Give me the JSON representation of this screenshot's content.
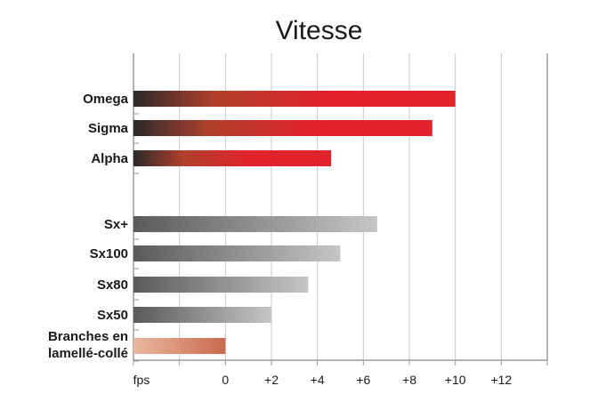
{
  "chart_data": {
    "type": "bar",
    "orientation": "horizontal",
    "title": "Vitesse",
    "xlabel": "fps",
    "xlim": [
      -4,
      14
    ],
    "x_tick_values": [
      0,
      2,
      4,
      6,
      8,
      10,
      12
    ],
    "x_tick_labels": [
      "0",
      "+2",
      "+4",
      "+6",
      "+8",
      "+10",
      "+12"
    ],
    "grid": true,
    "categories": [
      {
        "label": "Omega",
        "value": 10,
        "group": "red"
      },
      {
        "label": "Sigma",
        "value": 9,
        "group": "red"
      },
      {
        "label": "Alpha",
        "value": 4.6,
        "group": "red"
      },
      {
        "label": "Sx+",
        "value": 6.6,
        "group": "gray"
      },
      {
        "label": "Sx100",
        "value": 5,
        "group": "gray"
      },
      {
        "label": "Sx80",
        "value": 3.6,
        "group": "gray"
      },
      {
        "label": "Sx50",
        "value": 2,
        "group": "gray"
      },
      {
        "label": [
          "Branches en",
          "lamellé-collé"
        ],
        "value": 0,
        "group": "wood"
      }
    ],
    "colors": {
      "red_start": "#2a2a2a",
      "red_mid": "#b0402c",
      "red_end": "#e2232b",
      "gray_start": "#5a5a5a",
      "gray_end": "#c6c6c6",
      "wood_start": "#e9b8a0",
      "wood_end": "#c96a4e",
      "grid": "#c8c8c8",
      "axis": "#9a9a9a"
    }
  }
}
